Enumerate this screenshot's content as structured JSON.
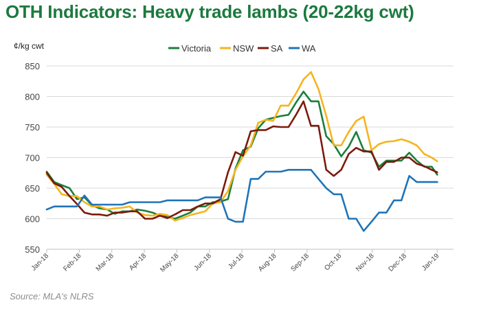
{
  "header": {
    "title": "OTH Indicators: Heavy trade lambs (20-22kg cwt)"
  },
  "footer": {
    "source": "Source: MLA's NLRS"
  },
  "chart_data": {
    "type": "line",
    "title": "OTH Indicators: Heavy trade lambs (20-22kg cwt)",
    "ylabel": "¢/kg cwt",
    "xlabel": "",
    "ylim": [
      550,
      850
    ],
    "yticks": [
      550,
      600,
      650,
      700,
      750,
      800,
      850
    ],
    "grid": "horizontal",
    "legend": "top-center",
    "xlim": [
      0,
      12.5
    ],
    "xticks": [
      {
        "x": 0,
        "label": "Jan-18"
      },
      {
        "x": 1,
        "label": "Feb-18"
      },
      {
        "x": 2,
        "label": "Mar-18"
      },
      {
        "x": 3,
        "label": "Apr-18"
      },
      {
        "x": 4,
        "label": "May-18"
      },
      {
        "x": 5,
        "label": "Jun-18"
      },
      {
        "x": 6,
        "label": "Jul-18"
      },
      {
        "x": 7,
        "label": "Aug-18"
      },
      {
        "x": 8,
        "label": "Sep-18"
      },
      {
        "x": 9,
        "label": "Oct-18"
      },
      {
        "x": 10,
        "label": "Nov-18"
      },
      {
        "x": 11,
        "label": "Dec-18"
      },
      {
        "x": 12,
        "label": "Jan-19"
      }
    ],
    "series": [
      {
        "name": "Victoria",
        "color": "#1a7f3c",
        "x": [
          0.0,
          0.23,
          0.46,
          0.7,
          0.93,
          1.16,
          1.39,
          1.62,
          1.86,
          2.09,
          2.32,
          2.55,
          2.78,
          3.02,
          3.25,
          3.48,
          3.71,
          3.94,
          4.18,
          4.41,
          4.64,
          4.87,
          5.1,
          5.34,
          5.57,
          5.8,
          6.03,
          6.27,
          6.5,
          6.73,
          6.96,
          7.19,
          7.43,
          7.66,
          7.89,
          8.12,
          8.35,
          8.59,
          8.82,
          9.05,
          9.28,
          9.51,
          9.74,
          9.98,
          10.21,
          10.44,
          10.67,
          10.9,
          11.14,
          11.37,
          11.6,
          11.83,
          12.0
        ],
        "y": [
          677,
          660,
          655,
          650,
          632,
          635,
          622,
          617,
          615,
          608,
          612,
          612,
          615,
          613,
          610,
          605,
          603,
          600,
          605,
          610,
          620,
          620,
          627,
          628,
          632,
          682,
          712,
          718,
          748,
          762,
          765,
          768,
          770,
          790,
          808,
          792,
          792,
          735,
          722,
          702,
          718,
          742,
          712,
          708,
          685,
          695,
          695,
          695,
          708,
          695,
          685,
          685,
          672
        ]
      },
      {
        "name": "NSW",
        "color": "#f5b41e",
        "x": [
          0.0,
          0.23,
          0.46,
          0.7,
          0.93,
          1.16,
          1.39,
          1.62,
          1.86,
          2.09,
          2.32,
          2.55,
          2.78,
          3.02,
          3.25,
          3.48,
          3.71,
          3.94,
          4.18,
          4.41,
          4.64,
          4.87,
          5.1,
          5.34,
          5.57,
          5.8,
          6.03,
          6.27,
          6.5,
          6.73,
          6.96,
          7.19,
          7.43,
          7.66,
          7.89,
          8.12,
          8.35,
          8.59,
          8.82,
          9.05,
          9.28,
          9.51,
          9.74,
          9.98,
          10.21,
          10.44,
          10.67,
          10.9,
          11.14,
          11.37,
          11.6,
          11.83,
          12.0
        ],
        "y": [
          672,
          657,
          640,
          637,
          637,
          627,
          620,
          620,
          615,
          617,
          618,
          620,
          610,
          606,
          605,
          608,
          606,
          597,
          601,
          606,
          609,
          612,
          625,
          627,
          645,
          680,
          702,
          720,
          757,
          762,
          760,
          785,
          785,
          805,
          828,
          840,
          812,
          768,
          720,
          720,
          742,
          760,
          767,
          712,
          722,
          726,
          727,
          730,
          726,
          720,
          706,
          700,
          694
        ]
      },
      {
        "name": "SA",
        "color": "#7b1a0c",
        "x": [
          0.0,
          0.23,
          0.46,
          0.7,
          0.93,
          1.16,
          1.39,
          1.62,
          1.86,
          2.09,
          2.32,
          2.55,
          2.78,
          3.02,
          3.25,
          3.48,
          3.71,
          3.94,
          4.18,
          4.41,
          4.64,
          4.87,
          5.1,
          5.34,
          5.57,
          5.8,
          6.03,
          6.27,
          6.5,
          6.73,
          6.96,
          7.19,
          7.43,
          7.66,
          7.89,
          8.12,
          8.35,
          8.59,
          8.82,
          9.05,
          9.28,
          9.51,
          9.74,
          9.98,
          10.21,
          10.44,
          10.67,
          10.9,
          11.14,
          11.37,
          11.6,
          11.83,
          12.0
        ],
        "y": [
          675,
          658,
          652,
          637,
          624,
          610,
          607,
          607,
          605,
          610,
          610,
          612,
          612,
          600,
          600,
          605,
          601,
          607,
          614,
          614,
          620,
          625,
          625,
          632,
          676,
          709,
          703,
          743,
          745,
          745,
          751,
          750,
          750,
          770,
          792,
          752,
          752,
          680,
          670,
          680,
          706,
          716,
          710,
          710,
          680,
          693,
          693,
          700,
          700,
          690,
          686,
          680,
          676
        ]
      },
      {
        "name": "WA",
        "color": "#1f74b8",
        "x": [
          0.0,
          0.23,
          0.46,
          0.7,
          0.93,
          1.16,
          1.39,
          1.62,
          1.86,
          2.09,
          2.32,
          2.55,
          2.78,
          3.02,
          3.25,
          3.48,
          3.71,
          3.94,
          4.18,
          4.41,
          4.64,
          4.87,
          5.1,
          5.34,
          5.57,
          5.8,
          6.03,
          6.27,
          6.5,
          6.73,
          6.96,
          7.19,
          7.43,
          7.66,
          7.89,
          8.12,
          8.35,
          8.59,
          8.82,
          9.05,
          9.28,
          9.51,
          9.74,
          9.98,
          10.21,
          10.44,
          10.67,
          10.9,
          11.14,
          11.37,
          11.6,
          11.83,
          12.0
        ],
        "y": [
          615,
          620,
          620,
          620,
          620,
          638,
          623,
          623,
          623,
          623,
          623,
          627,
          627,
          627,
          627,
          627,
          630,
          630,
          630,
          630,
          630,
          635,
          635,
          635,
          600,
          595,
          595,
          665,
          665,
          677,
          677,
          677,
          680,
          680,
          680,
          680,
          665,
          650,
          640,
          640,
          600,
          600,
          580,
          595,
          610,
          610,
          630,
          630,
          670,
          660,
          660,
          660,
          660
        ]
      }
    ]
  }
}
